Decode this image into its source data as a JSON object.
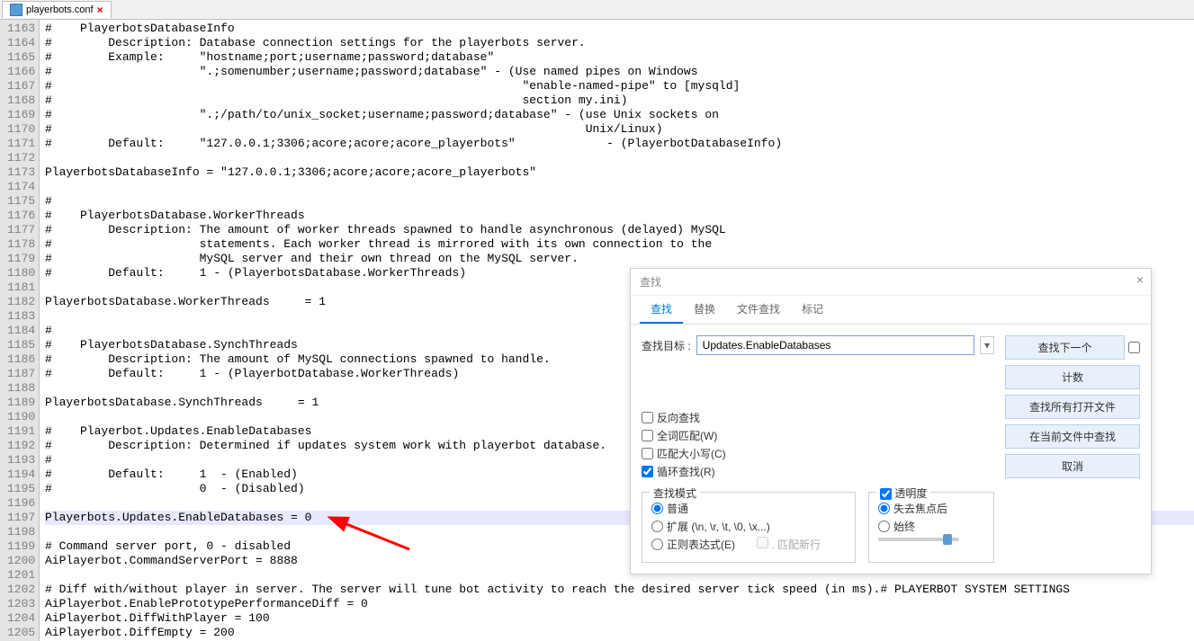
{
  "tab": {
    "filename": "playerbots.conf"
  },
  "gutter": {
    "start": 1163,
    "end": 1205
  },
  "code_lines": [
    "#    PlayerbotsDatabaseInfo",
    "#        Description: Database connection settings for the playerbots server.",
    "#        Example:     \"hostname;port;username;password;database\"",
    "#                     \".;somenumber;username;password;database\" - (Use named pipes on Windows",
    "#                                                                   \"enable-named-pipe\" to [mysqld]",
    "#                                                                   section my.ini)",
    "#                     \".;/path/to/unix_socket;username;password;database\" - (use Unix sockets on",
    "#                                                                            Unix/Linux)",
    "#        Default:     \"127.0.0.1;3306;acore;acore;acore_playerbots\"             - (PlayerbotDatabaseInfo)",
    "",
    "PlayerbotsDatabaseInfo = \"127.0.0.1;3306;acore;acore;acore_playerbots\"",
    "",
    "#",
    "#    PlayerbotsDatabase.WorkerThreads",
    "#        Description: The amount of worker threads spawned to handle asynchronous (delayed) MySQL",
    "#                     statements. Each worker thread is mirrored with its own connection to the",
    "#                     MySQL server and their own thread on the MySQL server.",
    "#        Default:     1 - (PlayerbotsDatabase.WorkerThreads)",
    "",
    "PlayerbotsDatabase.WorkerThreads     = 1",
    "",
    "#",
    "#    PlayerbotsDatabase.SynchThreads",
    "#        Description: The amount of MySQL connections spawned to handle.",
    "#        Default:     1 - (PlayerbotDatabase.WorkerThreads)",
    "",
    "PlayerbotsDatabase.SynchThreads     = 1",
    "",
    "#    Playerbot.Updates.EnableDatabases",
    "#        Description: Determined if updates system work with playerbot database.",
    "#",
    "#        Default:     1  - (Enabled)",
    "#                     0  - (Disabled)",
    "",
    "Playerbots.Updates.EnableDatabases = 0",
    "",
    "# Command server port, 0 - disabled",
    "AiPlayerbot.CommandServerPort = 8888",
    "",
    "# Diff with/without player in server. The server will tune bot activity to reach the desired server tick speed (in ms).# PLAYERBOT SYSTEM SETTINGS                      #",
    "AiPlayerbot.EnablePrototypePerformanceDiff = 0",
    "AiPlayerbot.DiffWithPlayer = 100",
    "AiPlayerbot.DiffEmpty = 200"
  ],
  "highlight_line_index": 34,
  "find": {
    "title": "查找",
    "tabs": {
      "find": "查找",
      "replace": "替换",
      "find_in_files": "文件查找",
      "mark": "标记"
    },
    "target_label": "查找目标 :",
    "target_value": "Updates.EnableDatabases",
    "buttons": {
      "find_next": "查找下一个",
      "count": "计数",
      "find_all_open": "查找所有打开文件",
      "find_all_current": "在当前文件中查找",
      "cancel": "取消"
    },
    "options": {
      "backward": "反向查找",
      "whole_word": "全词匹配(W)",
      "match_case": "匹配大小写(C)",
      "wrap": "循环查找(R)"
    },
    "mode": {
      "legend": "查找模式",
      "normal": "普通",
      "extended": "扩展 (\\n, \\r, \\t, \\0, \\x...)",
      "regex": "正则表达式(E)",
      "match_newline": ". 匹配新行"
    },
    "transparency": {
      "legend": "透明度",
      "on_lose_focus": "失去焦点后",
      "always": "始终"
    }
  },
  "colors": {
    "arrow": "#ff0000"
  }
}
